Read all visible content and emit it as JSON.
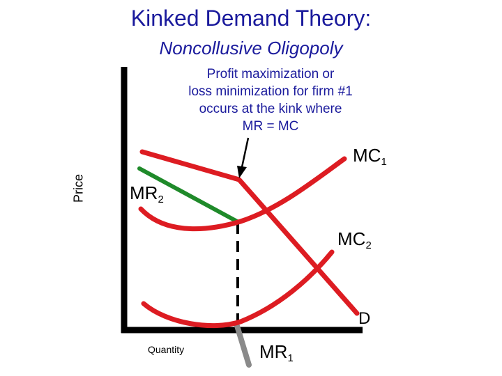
{
  "title": "Kinked Demand Theory:",
  "subtitle": "Noncollusive Oligopoly",
  "annotation": {
    "lines": [
      "Profit maximization or",
      "loss minimization for firm #1",
      "occurs at the kink where",
      "MR = MC"
    ]
  },
  "axes": {
    "y_label": "Price",
    "x_label": "Quantity"
  },
  "curves": {
    "mc1": {
      "base": "MC",
      "sub": "1"
    },
    "mc2": {
      "base": "MC",
      "sub": "2"
    },
    "mr2": {
      "base": "MR",
      "sub": "2"
    },
    "mr1": {
      "base": "MR",
      "sub": "1"
    },
    "d": {
      "base": "D"
    }
  },
  "colors": {
    "text_blue": "#1a1a9c",
    "curve_red": "#dd1c22",
    "mr_green": "#1f8a2a",
    "mr_gray": "#8a8a8a",
    "axis": "#000000"
  }
}
